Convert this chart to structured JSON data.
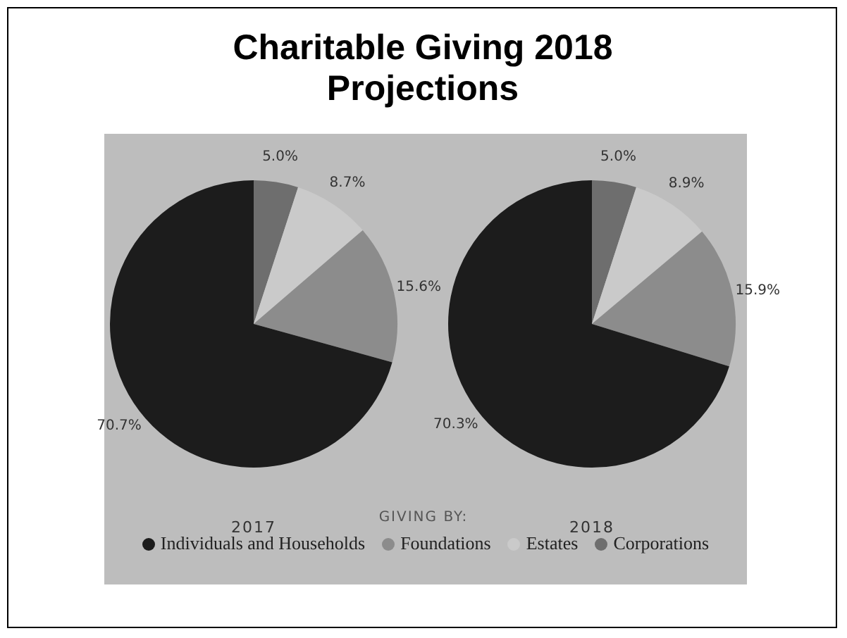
{
  "chart_data": [
    {
      "type": "pie",
      "title": "Charitable Giving 2018 Projections",
      "subtitle": "2017",
      "legend_title": "GIVING BY:",
      "legend": "bottom",
      "categories": [
        "Corporations",
        "Estates",
        "Foundations",
        "Individuals and Households"
      ],
      "values": [
        5.0,
        8.7,
        15.6,
        70.7
      ],
      "colors": [
        "#6e6e6e",
        "#cacaca",
        "#8c8c8c",
        "#1c1c1c"
      ],
      "value_labels": [
        "5.0%",
        "8.7%",
        "15.6%",
        "70.7%"
      ]
    },
    {
      "type": "pie",
      "subtitle": "2018",
      "categories": [
        null,
        null,
        null,
        null
      ],
      "values": [
        5.0,
        8.9,
        15.9,
        70.3
      ],
      "colors": [
        "#6e6e6e",
        "#cacaca",
        "#8c8c8c",
        "#1c1c1c"
      ],
      "value_labels": [
        "5.0%",
        "8.9%",
        "15.9%",
        "70.3%"
      ]
    }
  ]
}
